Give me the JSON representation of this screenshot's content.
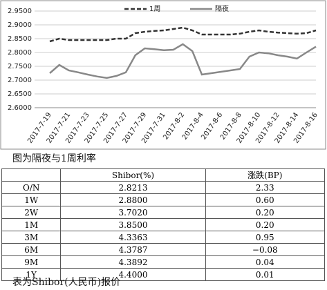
{
  "chart_data": {
    "type": "line",
    "legend": "top",
    "grid": true,
    "categories": [
      "2017-7-19",
      null,
      "2017-7-21",
      null,
      "2017-7-23",
      null,
      "2017-7-25",
      null,
      "2017-7-27",
      null,
      "2017-7-29",
      null,
      "2017-7-31",
      null,
      "2017-8-2",
      null,
      "2017-8-4",
      null,
      "2017-8-6",
      null,
      "2017-8-8",
      null,
      "2017-8-10",
      null,
      "2017-8-12",
      null,
      "2017-8-14",
      null,
      "2017-8-16"
    ],
    "ylim": [
      2.6,
      2.95
    ],
    "yticks": [
      {
        "value": 2.6,
        "label": "2.6000"
      },
      {
        "value": 2.65,
        "label": "2.6500"
      },
      {
        "value": 2.7,
        "label": "2.7000"
      },
      {
        "value": 2.75,
        "label": "2.7500"
      },
      {
        "value": 2.8,
        "label": "2.8000"
      },
      {
        "value": 2.85,
        "label": "2.8500"
      },
      {
        "value": 2.9,
        "label": "2.9000"
      },
      {
        "value": 2.95,
        "label": "2.9500"
      }
    ],
    "series": [
      {
        "name": "1周",
        "color": "#333333",
        "dashed": true,
        "values": [
          2.84,
          2.85,
          2.845,
          2.845,
          2.845,
          2.845,
          2.845,
          2.85,
          2.85,
          2.87,
          2.875,
          2.878,
          2.88,
          2.885,
          2.89,
          2.88,
          2.865,
          2.865,
          2.865,
          2.865,
          2.868,
          2.875,
          2.88,
          2.875,
          2.872,
          2.87,
          2.868,
          2.87,
          2.88
        ]
      },
      {
        "name": "隔夜",
        "color": "#888888",
        "dashed": false,
        "values": [
          2.725,
          2.755,
          2.735,
          2.728,
          2.72,
          2.713,
          2.708,
          2.715,
          2.728,
          2.79,
          2.815,
          2.812,
          2.808,
          2.81,
          2.83,
          2.805,
          2.72,
          2.725,
          2.73,
          2.735,
          2.74,
          2.785,
          2.8,
          2.797,
          2.79,
          2.785,
          2.778,
          2.8,
          2.821
        ]
      }
    ]
  },
  "caption1": "图为隔夜与1周利率",
  "table": {
    "header": [
      "",
      "Shibor(%)",
      "涨跌(BP)"
    ],
    "rows": [
      [
        "O/N",
        "2.8213",
        "2.33"
      ],
      [
        "1W",
        "2.8800",
        "0.60"
      ],
      [
        "2W",
        "3.7020",
        "0.20"
      ],
      [
        "1M",
        "3.8500",
        "0.20"
      ],
      [
        "3M",
        "4.3363",
        "0.95"
      ],
      [
        "6M",
        "4.3787",
        "−0.08"
      ],
      [
        "9M",
        "4.3892",
        "0.04"
      ],
      [
        "1Y",
        "4.4000",
        "0.01"
      ]
    ]
  },
  "caption2": "表为Shibor(人民币)报价"
}
